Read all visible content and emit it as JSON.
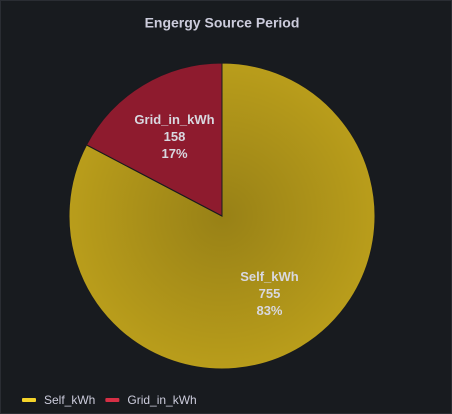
{
  "chart_data": {
    "type": "pie",
    "title": "Engergy Source Period",
    "categories": [
      "Self_kWh",
      "Grid_in_kWh"
    ],
    "values": [
      755,
      158
    ],
    "percent_labels": [
      "83%",
      "17%"
    ],
    "colors": [
      "#b99d1b",
      "#8e1b2e"
    ],
    "legend_colors": [
      "#f5d42a",
      "#d62f45"
    ]
  }
}
